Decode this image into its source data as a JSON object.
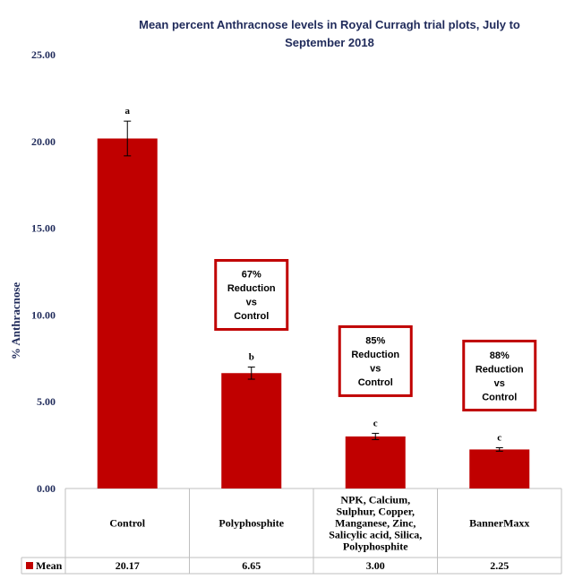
{
  "chart_data": {
    "type": "bar",
    "title_lines": [
      "Mean percent Anthracnose levels in Royal Curragh trial plots, July to",
      "September 2018"
    ],
    "ylabel": "% Anthracnose",
    "ylim": [
      0,
      25
    ],
    "yticks": [
      "0.00",
      "5.00",
      "10.00",
      "15.00",
      "20.00",
      "25.00"
    ],
    "categories": [
      [
        "Control"
      ],
      [
        "Polyphosphite"
      ],
      [
        "NPK, Calcium,",
        "Sulphur, Copper,",
        "Manganese, Zinc,",
        "Salicylic acid, Silica,",
        "Polyphosphite"
      ],
      [
        "BannerMaxx"
      ]
    ],
    "series": [
      {
        "name": "Mean",
        "values": [
          20.17,
          6.65,
          3.0,
          2.25
        ],
        "color": "#c00000"
      }
    ],
    "error_bars": [
      1.0,
      0.35,
      0.18,
      0.1
    ],
    "significance": [
      "a",
      "b",
      "c",
      "c"
    ],
    "table_values": [
      "20.17",
      "6.65",
      "3.00",
      "2.25"
    ],
    "annotations": [
      {
        "category_index": 1,
        "lines": [
          "67%",
          "Reduction",
          "vs",
          "Control"
        ]
      },
      {
        "category_index": 2,
        "lines": [
          "85%",
          "Reduction",
          "vs",
          "Control"
        ]
      },
      {
        "category_index": 3,
        "lines": [
          "88%",
          "Reduction",
          "vs",
          "Control"
        ]
      }
    ],
    "legend_label": "Mean",
    "bar_color": "#c00000",
    "box_color": "#c00000"
  }
}
